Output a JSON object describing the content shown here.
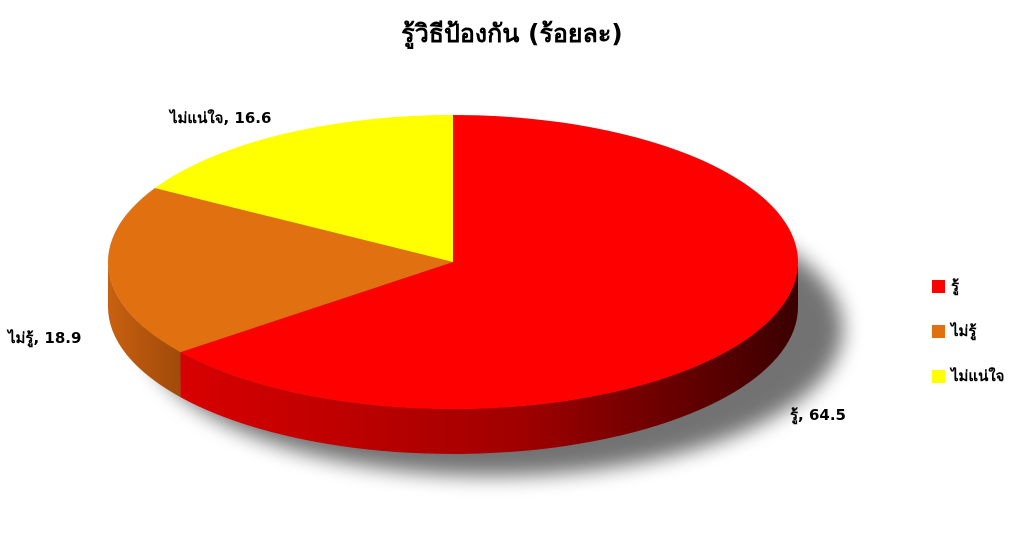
{
  "chart_data": {
    "type": "pie",
    "title": "รู้วิธีป้องกัน (ร้อยละ)",
    "series": [
      {
        "name": "รู้",
        "value": 64.5,
        "color": "#ff0000",
        "label": "รู้, 64.5"
      },
      {
        "name": "ไม่รู้",
        "value": 18.9,
        "color": "#e07010",
        "label": "ไม่รู้, 18.9"
      },
      {
        "name": "ไม่แน่ใจ",
        "value": 16.6,
        "color": "#ffff00",
        "label": "ไม่แน่ใจ, 16.6"
      }
    ],
    "legend": {
      "position": "right"
    },
    "style": "3d"
  }
}
